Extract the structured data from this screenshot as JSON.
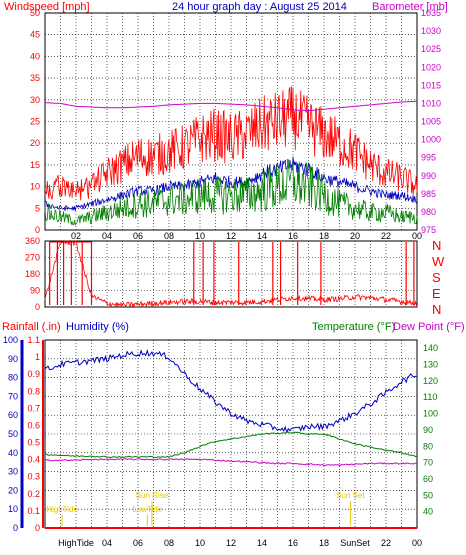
{
  "header": {
    "title": "24 hour graph day : August 25 2014",
    "left_label": "Windspeed [mph]",
    "right_label": "Barometer [mb]"
  },
  "colors": {
    "wind_speed": "#ff0000",
    "wind_avg": "#0000c0",
    "wind_gust": "#008000",
    "barometer": "#cc00cc",
    "direction": "#ff0000",
    "rainfall": "#ff0000",
    "humidity": "#0000c0",
    "temperature": "#008000",
    "dewpoint": "#cc00cc",
    "frame": "#000000",
    "grid": "#000000",
    "title": "#0000c0",
    "annotation": "#e6c800"
  },
  "chart_data": [
    {
      "type": "line",
      "panel": "wind",
      "title": "24 hour graph day : August 25 2014",
      "ylabel": "Windspeed [mph]",
      "y2label": "Barometer [mb]",
      "x_ticks": [
        "02",
        "04",
        "06",
        "08",
        "10",
        "12",
        "14",
        "16",
        "18",
        "20",
        "22",
        "00"
      ],
      "ylim": [
        0,
        50
      ],
      "y_ticks": [
        0,
        5,
        10,
        15,
        20,
        25,
        30,
        35,
        40,
        45,
        50
      ],
      "y2lim": [
        975,
        1035
      ],
      "y2_ticks": [
        975,
        980,
        985,
        990,
        995,
        1000,
        1005,
        1010,
        1015,
        1020,
        1025,
        1030,
        1035
      ],
      "grid": true,
      "x_hours": [
        0,
        1,
        2,
        3,
        4,
        5,
        6,
        7,
        8,
        9,
        10,
        11,
        12,
        13,
        14,
        15,
        16,
        17,
        18,
        19,
        20,
        21,
        22,
        23,
        24
      ],
      "series": [
        {
          "name": "Windspeed",
          "color_key": "wind_speed",
          "values": [
            9,
            10,
            9,
            10,
            13,
            15,
            17,
            17,
            18,
            19,
            21,
            22,
            21,
            22,
            24,
            25,
            26,
            24,
            22,
            20,
            18,
            15,
            13,
            12,
            10
          ]
        },
        {
          "name": "Windspeed average",
          "color_key": "wind_avg",
          "values": [
            6,
            5,
            5,
            6,
            7,
            8,
            9,
            9,
            10,
            10,
            11,
            12,
            11,
            11,
            13,
            14,
            15,
            14,
            12,
            11,
            10,
            9,
            8,
            8,
            7
          ]
        },
        {
          "name": "Windspeed minimum",
          "color_key": "wind_gust",
          "values": [
            4,
            3,
            2,
            3,
            4,
            5,
            6,
            6,
            7,
            7,
            8,
            8,
            8,
            8,
            9,
            10,
            11,
            10,
            8,
            6,
            5,
            4,
            4,
            3,
            3
          ]
        },
        {
          "name": "Barometer",
          "color_key": "barometer",
          "axis": "y2",
          "values": [
            1010.2,
            1010.0,
            1009.2,
            1009.0,
            1008.8,
            1008.8,
            1009.0,
            1009.2,
            1009.6,
            1009.8,
            1010.0,
            1010.0,
            1009.8,
            1009.6,
            1009.2,
            1008.8,
            1008.2,
            1008.0,
            1008.4,
            1008.8,
            1009.2,
            1009.6,
            1010.0,
            1010.4,
            1010.6
          ]
        }
      ]
    },
    {
      "type": "line",
      "panel": "direction",
      "right_labels": [
        "N",
        "W",
        "S",
        "E",
        "N"
      ],
      "ylim": [
        0,
        360
      ],
      "y_ticks": [
        0,
        90,
        180,
        270,
        360
      ],
      "grid": true,
      "x_hours": [
        0,
        1,
        2,
        3,
        4,
        5,
        6,
        7,
        8,
        9,
        10,
        11,
        12,
        13,
        14,
        15,
        16,
        17,
        18,
        19,
        20,
        21,
        22,
        23,
        24
      ],
      "series": [
        {
          "name": "Wind direction",
          "color_key": "direction",
          "values": [
            40,
            355,
            350,
            60,
            20,
            10,
            15,
            20,
            25,
            30,
            30,
            25,
            25,
            25,
            30,
            40,
            50,
            45,
            40,
            45,
            55,
            50,
            40,
            30,
            20
          ]
        }
      ],
      "spikes_hours": [
        0.3,
        0.8,
        1.2,
        1.7,
        2.4,
        3.0,
        9.6,
        10.2,
        10.9,
        12.5,
        14.7,
        15.2,
        16.3,
        17.8,
        23.3,
        23.8
      ]
    },
    {
      "type": "line",
      "panel": "rain-humidity-temperature",
      "left_label_rain": "Rainfall (.in)",
      "left_label_humidity": "Humidity (%)",
      "right_label_temp": "Temperature (°F)",
      "right_label_dew": "Dew Point (°F)",
      "rain_ylim": [
        0,
        1.1
      ],
      "rain_ticks": [
        0,
        0.1,
        0.2,
        0.3,
        0.4,
        0.5,
        0.6,
        0.7,
        0.8,
        0.9,
        1,
        1.1
      ],
      "humidity_ylim": [
        0,
        100
      ],
      "humidity_ticks": [
        0,
        10,
        20,
        30,
        40,
        50,
        60,
        70,
        80,
        90,
        100
      ],
      "temp_ylim": [
        30,
        145
      ],
      "temp_ticks": [
        40,
        50,
        60,
        70,
        80,
        90,
        100,
        110,
        120,
        130,
        140
      ],
      "grid": true,
      "x_hours": [
        0,
        1,
        2,
        3,
        4,
        5,
        6,
        7,
        8,
        9,
        10,
        11,
        12,
        13,
        14,
        15,
        16,
        17,
        18,
        19,
        20,
        21,
        22,
        23,
        24
      ],
      "series": [
        {
          "name": "Humidity",
          "color_key": "humidity",
          "axis": "humidity",
          "values": [
            84,
            87,
            88,
            89,
            90,
            92,
            93,
            93,
            91,
            82,
            74,
            67,
            61,
            57,
            55,
            53,
            52,
            54,
            54,
            57,
            61,
            66,
            72,
            78,
            82
          ]
        },
        {
          "name": "Temperature",
          "color_key": "temperature",
          "axis": "temp",
          "values": [
            75,
            74.5,
            74,
            74,
            73.5,
            73.5,
            73.5,
            73.5,
            73.5,
            76,
            80,
            83,
            84.5,
            86,
            87.5,
            88,
            88.5,
            87.5,
            87.5,
            84.5,
            81.5,
            79.5,
            77.5,
            76,
            73.5
          ]
        },
        {
          "name": "Dew Point",
          "color_key": "dewpoint",
          "axis": "temp",
          "values": [
            71.5,
            71.5,
            71.5,
            72,
            72,
            72,
            72,
            72,
            72,
            72,
            72,
            71.5,
            71,
            70.5,
            70,
            69.5,
            69.5,
            69,
            68.5,
            68.5,
            69,
            69.5,
            69.5,
            69.5,
            69.5
          ]
        },
        {
          "name": "Rainfall",
          "color_key": "rainfall",
          "axis": "rain",
          "values": [
            0,
            0,
            0,
            0,
            0,
            0,
            0,
            0,
            0,
            0,
            0,
            0,
            0,
            0,
            0,
            0,
            0,
            0,
            0,
            0,
            0,
            0,
            0,
            0,
            0
          ]
        }
      ],
      "annotations": [
        {
          "text": "HighTide",
          "hour": 1.1,
          "level": 0
        },
        {
          "text": "Sun Rise",
          "hour": 6.9,
          "level": 1
        },
        {
          "text": "LowTide",
          "hour": 6.6,
          "level": 2
        },
        {
          "text": "Sun Set",
          "hour": 19.7,
          "level": 1
        }
      ],
      "x_tick_labels": [
        "HighTide",
        "04",
        "06",
        "08",
        "10",
        "12",
        "14",
        "16",
        "18",
        "SunSet",
        "22",
        "00"
      ]
    }
  ]
}
